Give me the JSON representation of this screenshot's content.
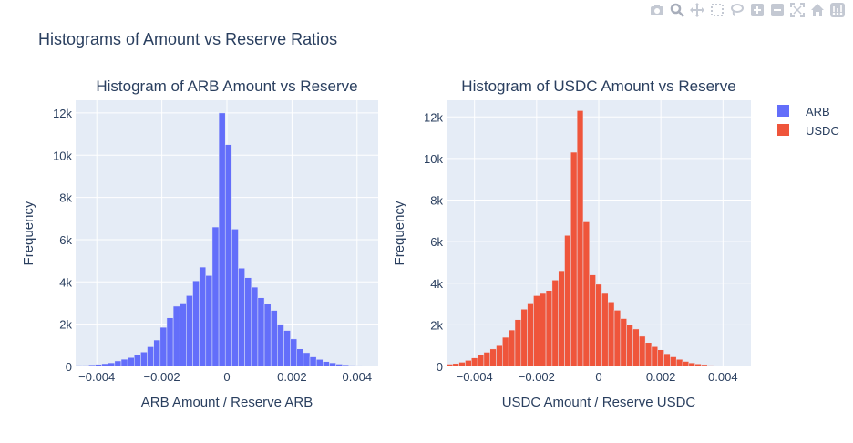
{
  "figure_title": "Histograms of Amount vs Reserve Ratios",
  "modebar": {
    "icons": [
      "camera-icon",
      "zoom-icon",
      "pan-icon",
      "box-select-icon",
      "lasso-icon",
      "zoom-in-icon",
      "zoom-out-icon",
      "autoscale-icon",
      "home-icon",
      "plotly-logo-icon"
    ]
  },
  "legend": {
    "placement": "right",
    "items": [
      {
        "name": "ARB",
        "color": "#636efa"
      },
      {
        "name": "USDC",
        "color": "#ef553b"
      }
    ]
  },
  "chart_data": [
    {
      "type": "bar",
      "title": "Histogram of ARB Amount vs Reserve",
      "xlabel": "ARB Amount / Reserve ARB",
      "ylabel": "Frequency",
      "series_name": "ARB",
      "color": "#636efa",
      "xlim": [
        -0.00465,
        0.00465
      ],
      "ylim": [
        0,
        12600
      ],
      "bin_width": 0.0002,
      "bin_start": -0.00465,
      "x_ticks": [
        -0.004,
        -0.002,
        0,
        0.002,
        0.004
      ],
      "x_tick_labels": [
        "−0.004",
        "−0.002",
        "0",
        "0.002",
        "0.004"
      ],
      "y_ticks": [
        0,
        2000,
        4000,
        6000,
        8000,
        10000,
        12000
      ],
      "y_tick_labels": [
        "0",
        "2k",
        "4k",
        "6k",
        "8k",
        "10k",
        "12k"
      ],
      "values": [
        60,
        60,
        80,
        100,
        130,
        170,
        260,
        340,
        420,
        540,
        680,
        930,
        1250,
        1850,
        2300,
        2850,
        3000,
        3350,
        4050,
        4700,
        4300,
        6600,
        12000,
        10500,
        6500,
        4650,
        4200,
        3750,
        3250,
        2950,
        2650,
        2000,
        1700,
        1300,
        830,
        650,
        450,
        330,
        230,
        170,
        110,
        80,
        60,
        50,
        40,
        30
      ]
    },
    {
      "type": "bar",
      "title": "Histogram of USDC Amount vs Reserve",
      "xlabel": "USDC Amount / Reserve USDC",
      "ylabel": "Frequency",
      "series_name": "USDC",
      "color": "#ef553b",
      "xlim": [
        -0.0049,
        0.0049
      ],
      "ylim": [
        0,
        12800
      ],
      "bin_width": 0.0002,
      "bin_start": -0.0049,
      "x_ticks": [
        -0.004,
        -0.002,
        0,
        0.002,
        0.004
      ],
      "x_tick_labels": [
        "−0.004",
        "−0.002",
        "0",
        "0.002",
        "0.004"
      ],
      "y_ticks": [
        0,
        2000,
        4000,
        6000,
        8000,
        10000,
        12000
      ],
      "y_tick_labels": [
        "0",
        "2k",
        "4k",
        "6k",
        "8k",
        "10k",
        "12k"
      ],
      "values": [
        110,
        140,
        200,
        290,
        410,
        550,
        680,
        840,
        1000,
        1400,
        1750,
        2250,
        2750,
        3050,
        3400,
        3550,
        3650,
        4150,
        4600,
        6300,
        10300,
        12300,
        6950,
        4400,
        3950,
        3550,
        3100,
        2700,
        2300,
        2000,
        1800,
        1450,
        1150,
        950,
        800,
        610,
        460,
        340,
        240,
        170,
        120,
        90,
        60,
        40,
        30,
        20,
        15,
        10,
        5
      ]
    }
  ]
}
